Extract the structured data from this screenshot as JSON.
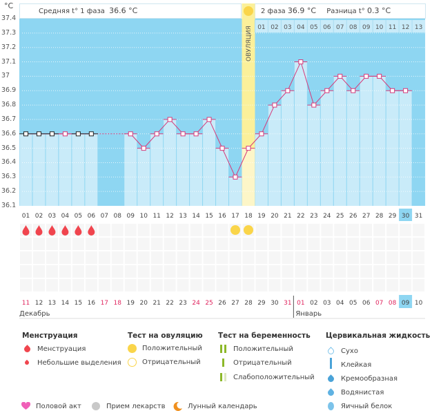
{
  "unit": "°C",
  "header": {
    "phase1_label": "Средняя t° 1 фаза",
    "phase1_value": "36.6 °C",
    "phase2_label": "2 фаза",
    "phase2_value": "36.9 °C",
    "diff_label": "Разница t°",
    "diff_value": "0.3 °C",
    "ovulation_label": "ОВУЛЯЦИЯ"
  },
  "colors": {
    "bg": "#8ed6f2",
    "bar": "#c9ebf9",
    "ovulation": "#fbf09a",
    "line": "#d63a7a",
    "red": "#e0245e",
    "drop": "#f0454e",
    "sun": "#fad54a"
  },
  "chart_data": {
    "type": "line",
    "ylim": [
      36.1,
      37.4
    ],
    "yticks": [
      "37.4",
      "37.3",
      "37.2",
      "37.1",
      "37",
      "36.9",
      "36.8",
      "36.7",
      "36.6",
      "36.5",
      "36.4",
      "36.3",
      "36.2",
      "36.1"
    ],
    "days": [
      "01",
      "02",
      "03",
      "04",
      "05",
      "06",
      "07",
      "08",
      "09",
      "10",
      "11",
      "12",
      "13",
      "14",
      "15",
      "16",
      "17",
      "18",
      "19",
      "20",
      "21",
      "22",
      "23",
      "24",
      "25",
      "26",
      "27",
      "28",
      "29",
      "30",
      "31"
    ],
    "temps": [
      36.6,
      36.6,
      36.6,
      36.6,
      36.6,
      36.6,
      null,
      null,
      36.6,
      36.5,
      36.6,
      36.7,
      36.6,
      36.6,
      36.7,
      36.5,
      36.3,
      36.5,
      36.6,
      36.8,
      36.9,
      37.1,
      36.8,
      36.9,
      37.0,
      36.9,
      37.0,
      37.0,
      36.9,
      36.9,
      null
    ],
    "black_markers": [
      1,
      2,
      3,
      5,
      6
    ],
    "ovulation_day": 18,
    "today_day": 30,
    "phase2_days": [
      "01",
      "02",
      "03",
      "04",
      "05",
      "06",
      "07",
      "08",
      "09",
      "10",
      "11",
      "12",
      "13"
    ]
  },
  "dates": [
    "11",
    "12",
    "13",
    "14",
    "15",
    "16",
    "17",
    "18",
    "19",
    "20",
    "21",
    "22",
    "23",
    "24",
    "25",
    "26",
    "27",
    "28",
    "29",
    "30",
    "31",
    "01",
    "02",
    "03",
    "04",
    "05",
    "06",
    "07",
    "08",
    "09",
    "10"
  ],
  "red_dates": [
    0,
    6,
    7,
    13,
    14,
    20,
    21,
    27,
    28
  ],
  "months": {
    "dec": "Декабрь",
    "jan": "Январь"
  },
  "menstruation_days": [
    1,
    2,
    3,
    4,
    5,
    6
  ],
  "ovulation_test_days": [
    17,
    18
  ],
  "moon_day": 10,
  "legend": {
    "menstruation": {
      "title": "Менструация",
      "items": [
        "Менструация",
        "Небольшие выделения"
      ]
    },
    "ovulation_test": {
      "title": "Тест на овуляцию",
      "items": [
        "Положительный",
        "Отрицательный"
      ]
    },
    "pregnancy_test": {
      "title": "Тест на беременность",
      "items": [
        "Положительный",
        "Отрицательный",
        "Слабоположительный"
      ]
    },
    "cervical": {
      "title": "Цервикальная жидкость",
      "items": [
        "Сухо",
        "Клейкая",
        "Кремообразная",
        "Водянистая",
        "Яичный белок"
      ]
    },
    "other": [
      "Половой акт",
      "Прием лекарств",
      "Лунный календарь"
    ]
  }
}
